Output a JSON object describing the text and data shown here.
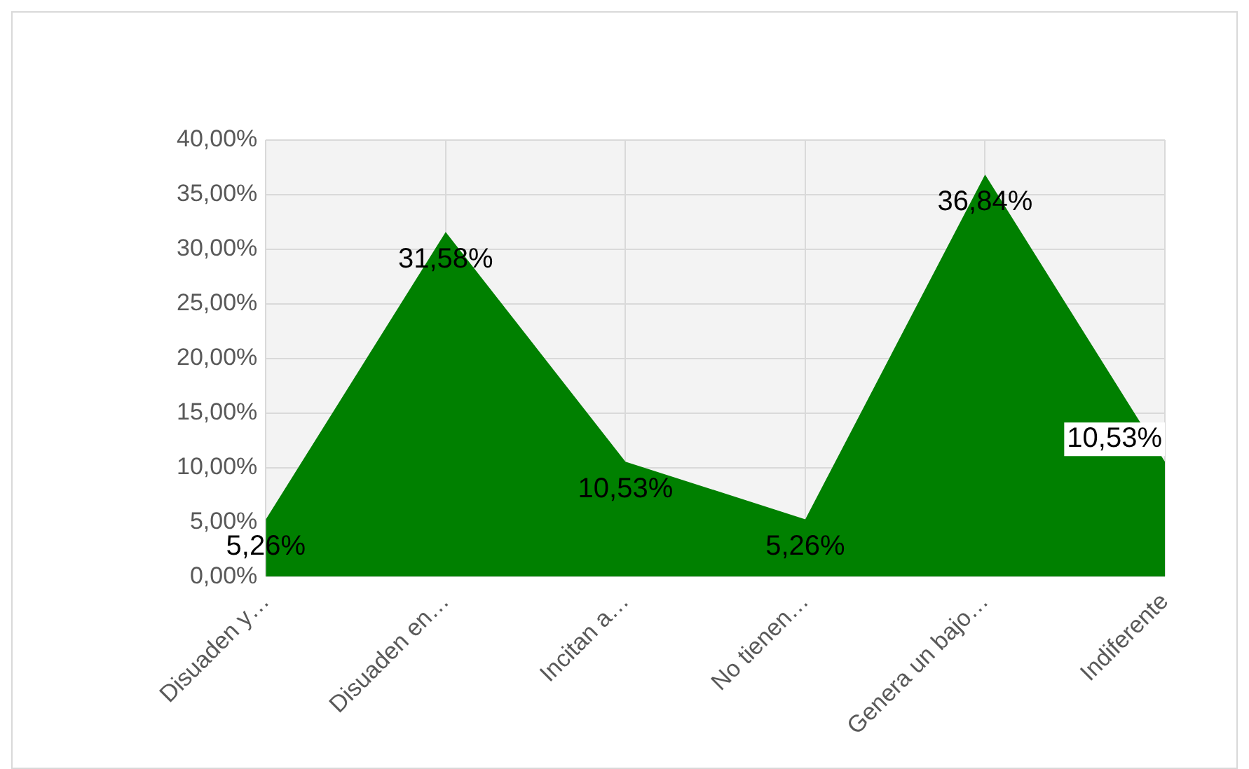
{
  "chart_data": {
    "type": "area",
    "categories": [
      "Disuaden y…",
      "Disuaden en…",
      "Incitan a…",
      "No tienen…",
      "Genera un bajo…",
      "Indiferente"
    ],
    "series": [
      {
        "color": "#008000",
        "values": [
          5.26,
          31.58,
          10.53,
          5.26,
          36.84,
          10.53
        ],
        "value_labels": [
          "5,26%",
          "31,58%",
          "10,53%",
          "5,26%",
          "36,84%",
          "10,53%"
        ]
      }
    ],
    "ylim": [
      0,
      40
    ],
    "yticks": [
      {
        "value": 0,
        "label": "0,00%"
      },
      {
        "value": 5,
        "label": "5,00%"
      },
      {
        "value": 10,
        "label": "10,00%"
      },
      {
        "value": 15,
        "label": "15,00%"
      },
      {
        "value": 20,
        "label": "20,00%"
      },
      {
        "value": 25,
        "label": "25,00%"
      },
      {
        "value": 30,
        "label": "30,00%"
      },
      {
        "value": 35,
        "label": "35,00%"
      },
      {
        "value": 40,
        "label": "40,00%"
      }
    ],
    "grid": true,
    "legend": false
  }
}
